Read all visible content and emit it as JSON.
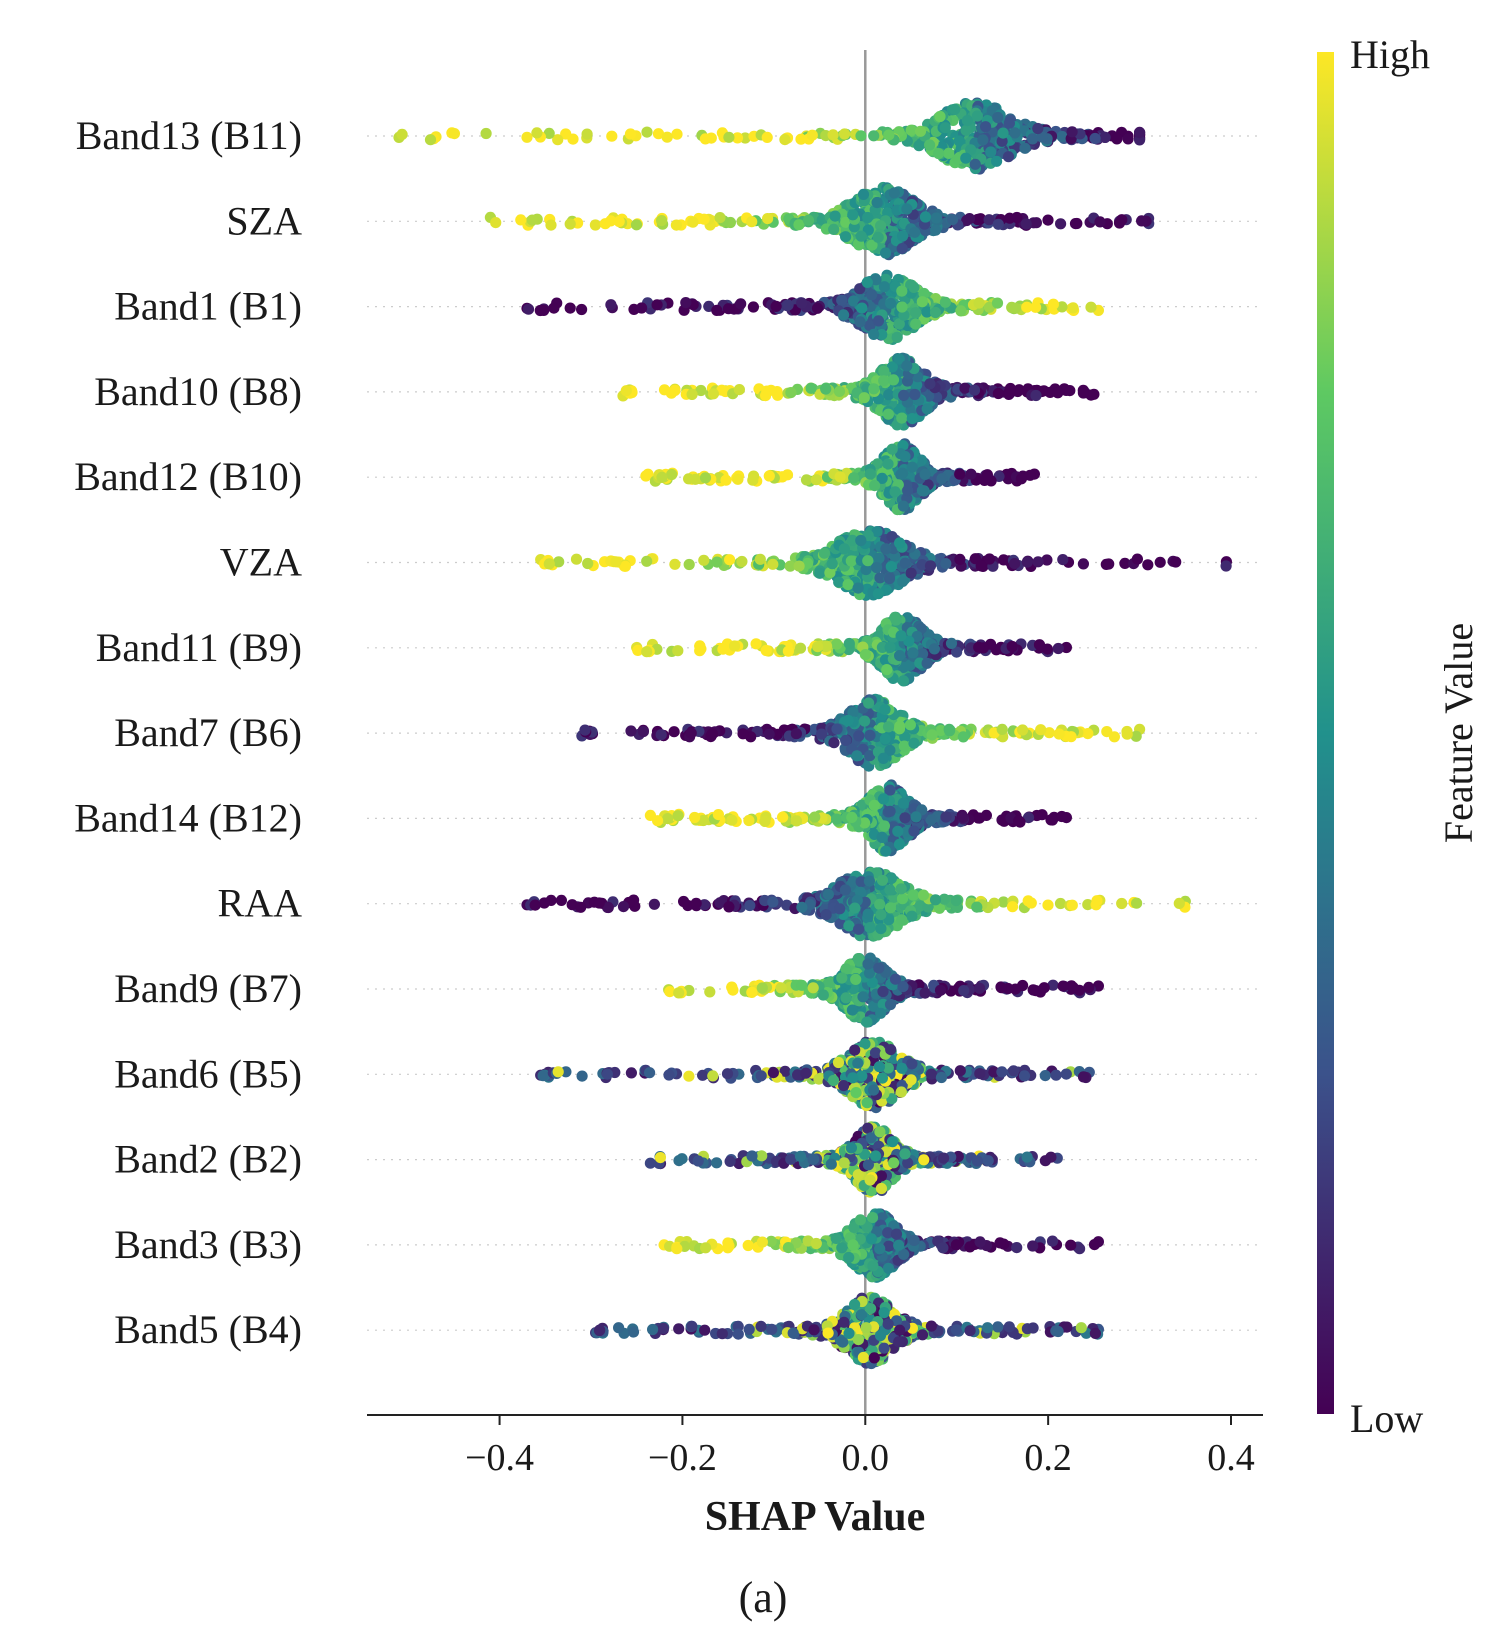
{
  "chart_data": {
    "type": "scatter",
    "subtype": "shap-beeswarm-summary",
    "xlabel": "SHAP Value",
    "xlim": [
      -0.545,
      0.435
    ],
    "xticks": [
      -0.4,
      -0.2,
      0.0,
      0.2,
      0.4
    ],
    "xtick_labels": [
      "−0.4",
      "−0.2",
      "0.0",
      "0.2",
      "0.4"
    ],
    "zero_line": 0.0,
    "panel_label": "(a)",
    "colorbar": {
      "title": "Feature Value",
      "high_label": "High",
      "low_label": "Low",
      "colormap": "viridis",
      "colors": [
        "#440154",
        "#3b528b",
        "#21918c",
        "#5ec962",
        "#fde725"
      ]
    },
    "features": [
      {
        "name": "Band13 (B11)",
        "min": -0.51,
        "max": 0.3,
        "peak": 0.12,
        "high_side": "negative"
      },
      {
        "name": "SZA",
        "min": -0.41,
        "max": 0.31,
        "peak": 0.02,
        "high_side": "negative"
      },
      {
        "name": "Band1 (B1)",
        "min": -0.37,
        "max": 0.255,
        "peak": 0.025,
        "high_side": "positive"
      },
      {
        "name": "Band10 (B8)",
        "min": -0.265,
        "max": 0.25,
        "peak": 0.04,
        "high_side": "negative"
      },
      {
        "name": "Band12 (B10)",
        "min": -0.24,
        "max": 0.185,
        "peak": 0.04,
        "high_side": "negative"
      },
      {
        "name": "VZA",
        "min": -0.355,
        "max": 0.395,
        "peak": 0.005,
        "high_side": "negative"
      },
      {
        "name": "Band11 (B9)",
        "min": -0.25,
        "max": 0.22,
        "peak": 0.04,
        "high_side": "negative"
      },
      {
        "name": "Band7 (B6)",
        "min": -0.31,
        "max": 0.3,
        "peak": 0.01,
        "high_side": "positive"
      },
      {
        "name": "Band14 (B12)",
        "min": -0.235,
        "max": 0.22,
        "peak": 0.025,
        "high_side": "negative"
      },
      {
        "name": "RAA",
        "min": -0.37,
        "max": 0.35,
        "peak": 0.005,
        "high_side": "positive"
      },
      {
        "name": "Band9 (B7)",
        "min": -0.215,
        "max": 0.255,
        "peak": 0.0,
        "high_side": "negative"
      },
      {
        "name": "Band6 (B5)",
        "min": -0.355,
        "max": 0.245,
        "peak": 0.01,
        "high_side": "mixed"
      },
      {
        "name": "Band2 (B2)",
        "min": -0.235,
        "max": 0.21,
        "peak": 0.01,
        "high_side": "mixed"
      },
      {
        "name": "Band3 (B3)",
        "min": -0.22,
        "max": 0.255,
        "peak": 0.01,
        "high_side": "negative"
      },
      {
        "name": "Band5 (B4)",
        "min": -0.295,
        "max": 0.255,
        "peak": 0.005,
        "high_side": "mixed"
      }
    ]
  }
}
